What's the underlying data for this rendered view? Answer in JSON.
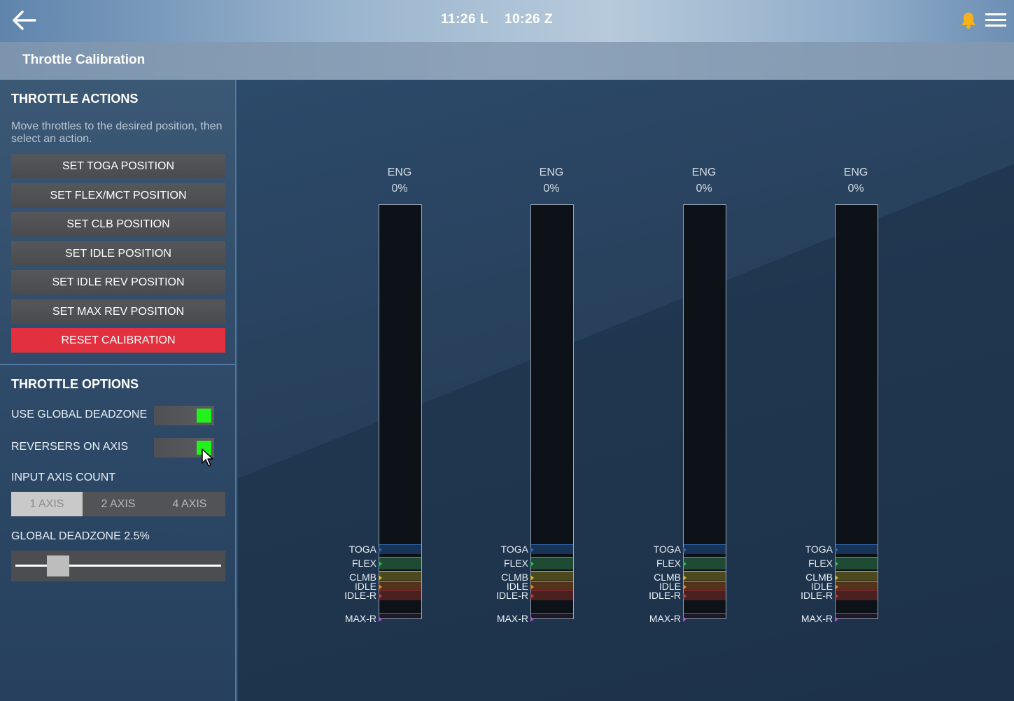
{
  "header": {
    "local_time": "11:26 L",
    "zulu_time": "10:26 Z",
    "icons": {
      "back": "arrow-left-icon",
      "notifications": "bell-icon",
      "menu": "hamburger-icon"
    },
    "bell_color": "#f5b21b"
  },
  "page": {
    "title": "Throttle Calibration"
  },
  "actions": {
    "title": "THROTTLE ACTIONS",
    "hint": "Move throttles to the desired position, then select an action.",
    "buttons": [
      {
        "label": "SET TOGA POSITION"
      },
      {
        "label": "SET FLEX/MCT POSITION"
      },
      {
        "label": "SET CLB POSITION"
      },
      {
        "label": "SET IDLE POSITION"
      },
      {
        "label": "SET IDLE REV POSITION"
      },
      {
        "label": "SET MAX REV POSITION"
      },
      {
        "label": "RESET CALIBRATION"
      }
    ],
    "reset_color": "#e3303f"
  },
  "options": {
    "title": "THROTTLE OPTIONS",
    "use_global_deadzone": {
      "label": "USE GLOBAL DEADZONE",
      "on": true
    },
    "reversers_on_axis": {
      "label": "REVERSERS ON AXIS",
      "on": true
    },
    "toggle_on_color": "#22f21b",
    "axis_count": {
      "label": "INPUT AXIS COUNT",
      "options": [
        "1 AXIS",
        "2 AXIS",
        "4 AXIS"
      ],
      "selected": "1 AXIS"
    },
    "deadzone": {
      "label": "GLOBAL DEADZONE 2.5%",
      "value_percent": 2.5,
      "slider_fraction": 0.17
    }
  },
  "engines": [
    {
      "label": "ENG",
      "value": "0%"
    },
    {
      "label": "ENG",
      "value": "0%"
    },
    {
      "label": "ENG",
      "value": "0%"
    },
    {
      "label": "ENG",
      "value": "0%"
    }
  ],
  "detents": {
    "toga": "TOGA",
    "flex": "FLEX",
    "climb": "CLMB",
    "idle": "IDLE",
    "idle_rev": "IDLE-R",
    "max_rev": "MAX-R"
  },
  "detent_colors": {
    "toga": "#3468b2",
    "flex": "#2fb85a",
    "climb": "#d4b72a",
    "idle": "#e0872a",
    "idle_rev": "#c93a3a",
    "max_rev": "#b34fc7"
  }
}
